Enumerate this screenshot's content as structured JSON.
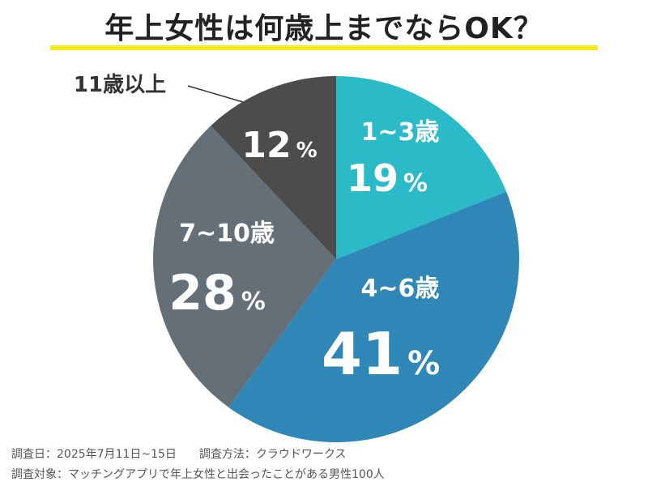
{
  "title": "年上女性は何歳上までならOK？",
  "chart_data": {
    "type": "pie",
    "slices": [
      {
        "label": "1~3歳",
        "value": 19,
        "display": "19",
        "color": "#2bbbc8"
      },
      {
        "label": "4~6歳",
        "value": 41,
        "display": "41",
        "color": "#2e87b6"
      },
      {
        "label": "7~10歳",
        "value": 28,
        "display": "28",
        "color": "#646f78"
      },
      {
        "label": "11歳以上",
        "value": 12,
        "display": "12",
        "color": "#4c4c4c"
      }
    ],
    "unit": "%"
  },
  "footer": {
    "date": "調査日：2025年7月11日~15日",
    "method": "調査方法：クラウドワークス",
    "target": "調査対象：マッチングアプリで年上女性と出会ったことがある男性100人"
  }
}
